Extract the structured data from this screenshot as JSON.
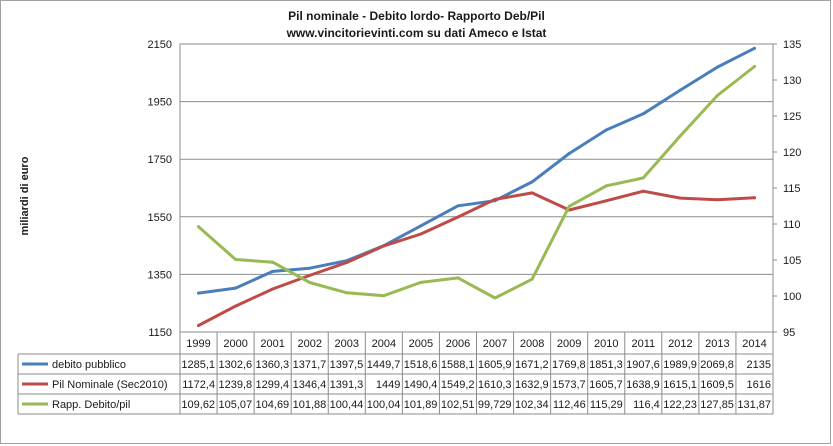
{
  "chart_data": {
    "type": "line",
    "title": "Pil nominale - Debito lordo- Rapporto Deb/Pil",
    "subtitle": "www.vincitorievinti.com  su dati Ameco e Istat",
    "ylabel": "miliardi di euro",
    "categories": [
      "1999",
      "2000",
      "2001",
      "2002",
      "2003",
      "2004",
      "2005",
      "2006",
      "2007",
      "2008",
      "2009",
      "2010",
      "2011",
      "2012",
      "2013",
      "2014"
    ],
    "ylim": [
      1150,
      2150
    ],
    "yticks": [
      "1150",
      "1350",
      "1550",
      "1750",
      "1950",
      "2150"
    ],
    "y2lim": [
      95,
      135
    ],
    "y2ticks": [
      "95",
      "100",
      "105",
      "110",
      "115",
      "120",
      "125",
      "130",
      "135"
    ],
    "grid": true,
    "series": [
      {
        "name": "debito pubblico",
        "axis": "left",
        "color": "#4a7ebb",
        "values": [
          1285.1,
          1302.6,
          1360.3,
          1371.7,
          1397.5,
          1449.7,
          1518.6,
          1588.1,
          1605.9,
          1671.2,
          1769.8,
          1851.3,
          1907.6,
          1989.9,
          2069.8,
          2135
        ],
        "labels": [
          "1285,1",
          "1302,6",
          "1360,3",
          "1371,7",
          "1397,5",
          "1449,7",
          "1518,6",
          "1588,1",
          "1605,9",
          "1671,2",
          "1769,8",
          "1851,3",
          "1907,6",
          "1989,9",
          "2069,8",
          "2135"
        ]
      },
      {
        "name": "Pil Nominale (Sec2010)",
        "axis": "left",
        "color": "#be4b48",
        "values": [
          1172.4,
          1239.8,
          1299.4,
          1346.4,
          1391.3,
          1449,
          1490.4,
          1549.2,
          1610.3,
          1632.9,
          1573.7,
          1605.7,
          1638.9,
          1615.1,
          1609.5,
          1616
        ],
        "labels": [
          "1172,4",
          "1239,8",
          "1299,4",
          "1346,4",
          "1391,3",
          "1449",
          "1490,4",
          "1549,2",
          "1610,3",
          "1632,9",
          "1573,7",
          "1605,7",
          "1638,9",
          "1615,1",
          "1609,5",
          "1616"
        ]
      },
      {
        "name": "Rapp. Debito/pil",
        "axis": "right",
        "color": "#98b954",
        "values": [
          109.62,
          105.07,
          104.69,
          101.88,
          100.44,
          100.04,
          101.89,
          102.51,
          99.729,
          102.34,
          112.46,
          115.29,
          116.4,
          122.23,
          127.85,
          131.87
        ],
        "labels": [
          "109,62",
          "105,07",
          "104,69",
          "101,88",
          "100,44",
          "100,04",
          "101,89",
          "102,51",
          "99,729",
          "102,34",
          "112,46",
          "115,29",
          "116,4",
          "122,23",
          "127,85",
          "131,87"
        ]
      }
    ]
  }
}
